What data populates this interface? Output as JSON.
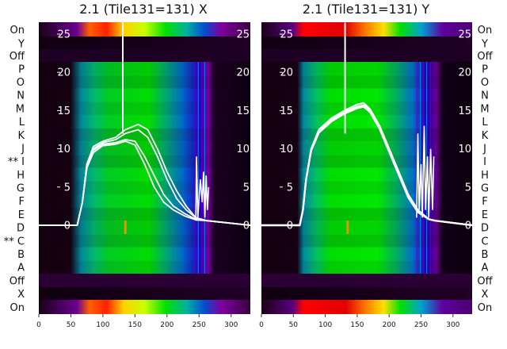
{
  "chart_data": [
    {
      "type": "heatmap",
      "title": "2.1 (Tile131=131) X",
      "xlabel": "",
      "ylabel": "",
      "xlim": [
        0,
        330
      ],
      "x_ticks": [
        "0",
        "50",
        "100",
        "150",
        "200",
        "250",
        "300"
      ],
      "y_ticks": [
        "0",
        "5",
        "10",
        "15",
        "20",
        "25"
      ],
      "ylim": [
        -13.5,
        28
      ],
      "row_labels": [
        "On",
        "Y",
        "Off",
        "P",
        "O",
        "N",
        "M",
        "L",
        "K",
        "J",
        "** I",
        "H",
        "G",
        "F",
        "E",
        "D",
        "** C",
        "B",
        "A",
        "Off",
        "X",
        "On"
      ],
      "colormap": "nipy_spectral",
      "series": [
        {
          "values": [
            [
              0,
              0
            ],
            [
              60,
              0
            ],
            [
              68,
              3
            ],
            [
              75,
              8
            ],
            [
              85,
              10.3
            ],
            [
              100,
              11.0
            ],
            [
              120,
              11.5
            ],
            [
              135,
              12.5
            ],
            [
              155,
              13.2
            ],
            [
              170,
              12.5
            ],
            [
              185,
              10
            ],
            [
              200,
              7
            ],
            [
              215,
              4.5
            ],
            [
              230,
              2.5
            ],
            [
              245,
              1
            ],
            [
              262,
              0.6
            ],
            [
              330,
              0
            ]
          ]
        },
        {
          "values": [
            [
              0,
              0
            ],
            [
              60,
              0
            ],
            [
              68,
              3
            ],
            [
              75,
              8
            ],
            [
              85,
              10.0
            ],
            [
              100,
              10.8
            ],
            [
              120,
              11.2
            ],
            [
              135,
              12.0
            ],
            [
              155,
              12.5
            ],
            [
              170,
              11.5
            ],
            [
              185,
              9
            ],
            [
              200,
              6
            ],
            [
              215,
              3.5
            ],
            [
              230,
              2
            ],
            [
              245,
              1
            ],
            [
              262,
              0.6
            ],
            [
              330,
              0
            ]
          ]
        },
        {
          "values": [
            [
              0,
              0
            ],
            [
              60,
              0
            ],
            [
              68,
              3
            ],
            [
              75,
              8
            ],
            [
              85,
              9.8
            ],
            [
              100,
              10.6
            ],
            [
              120,
              10.8
            ],
            [
              135,
              11.2
            ],
            [
              150,
              11
            ],
            [
              165,
              9
            ],
            [
              180,
              6.5
            ],
            [
              195,
              4
            ],
            [
              210,
              2.5
            ],
            [
              228,
              1.5
            ],
            [
              245,
              0.8
            ],
            [
              262,
              0.6
            ],
            [
              330,
              0
            ]
          ]
        },
        {
          "values": [
            [
              0,
              0
            ],
            [
              60,
              0
            ],
            [
              68,
              3
            ],
            [
              75,
              7.5
            ],
            [
              85,
              9.5
            ],
            [
              100,
              10.4
            ],
            [
              120,
              10.6
            ],
            [
              135,
              11.0
            ],
            [
              150,
              10.5
            ],
            [
              165,
              8
            ],
            [
              180,
              5
            ],
            [
              195,
              3
            ],
            [
              210,
              2
            ],
            [
              228,
              1.2
            ],
            [
              245,
              0.7
            ],
            [
              262,
              0.6
            ],
            [
              330,
              0
            ]
          ]
        }
      ]
    },
    {
      "type": "heatmap",
      "title": "2.1 (Tile131=131) Y",
      "xlabel": "",
      "ylabel": "",
      "xlim": [
        0,
        330
      ],
      "x_ticks": [
        "0",
        "50",
        "100",
        "150",
        "200",
        "250",
        "300"
      ],
      "y_ticks": [
        "0",
        "5",
        "10",
        "15",
        "20",
        "25"
      ],
      "ylim": [
        -13.5,
        28
      ],
      "row_labels": [
        "On",
        "Y",
        "Off",
        "P",
        "O",
        "N",
        "M",
        "L",
        "K",
        "J",
        "I",
        "H",
        "G",
        "F",
        "E",
        "D",
        "C",
        "B",
        "A",
        "Off",
        "X",
        "On"
      ],
      "colormap": "nipy_spectral",
      "series": [
        {
          "values": [
            [
              0,
              0
            ],
            [
              60,
              0
            ],
            [
              65,
              2
            ],
            [
              70,
              6
            ],
            [
              78,
              10
            ],
            [
              90,
              12.5
            ],
            [
              110,
              14
            ],
            [
              130,
              15
            ],
            [
              150,
              15.8
            ],
            [
              160,
              16
            ],
            [
              170,
              15.2
            ],
            [
              185,
              13
            ],
            [
              200,
              10
            ],
            [
              215,
              7
            ],
            [
              230,
              4
            ],
            [
              245,
              2
            ],
            [
              262,
              0.8
            ],
            [
              272,
              0.6
            ],
            [
              330,
              0
            ]
          ]
        },
        {
          "values": [
            [
              0,
              0
            ],
            [
              60,
              0
            ],
            [
              65,
              2
            ],
            [
              70,
              6
            ],
            [
              78,
              10
            ],
            [
              90,
              12.3
            ],
            [
              110,
              13.8
            ],
            [
              130,
              14.8
            ],
            [
              150,
              15.5
            ],
            [
              160,
              15.7
            ],
            [
              170,
              15.0
            ],
            [
              185,
              12.8
            ],
            [
              200,
              9.8
            ],
            [
              215,
              6.8
            ],
            [
              230,
              3.8
            ],
            [
              245,
              1.8
            ],
            [
              262,
              0.8
            ],
            [
              272,
              0.6
            ],
            [
              330,
              0
            ]
          ]
        },
        {
          "values": [
            [
              0,
              0
            ],
            [
              60,
              0
            ],
            [
              65,
              2
            ],
            [
              70,
              6
            ],
            [
              78,
              9.8
            ],
            [
              90,
              12.1
            ],
            [
              110,
              13.6
            ],
            [
              130,
              14.6
            ],
            [
              150,
              15.3
            ],
            [
              160,
              15.5
            ],
            [
              170,
              14.8
            ],
            [
              185,
              12.6
            ],
            [
              200,
              9.6
            ],
            [
              215,
              6.6
            ],
            [
              230,
              3.6
            ],
            [
              245,
              1.7
            ],
            [
              262,
              0.8
            ],
            [
              272,
              0.6
            ],
            [
              330,
              0
            ]
          ]
        }
      ]
    }
  ]
}
